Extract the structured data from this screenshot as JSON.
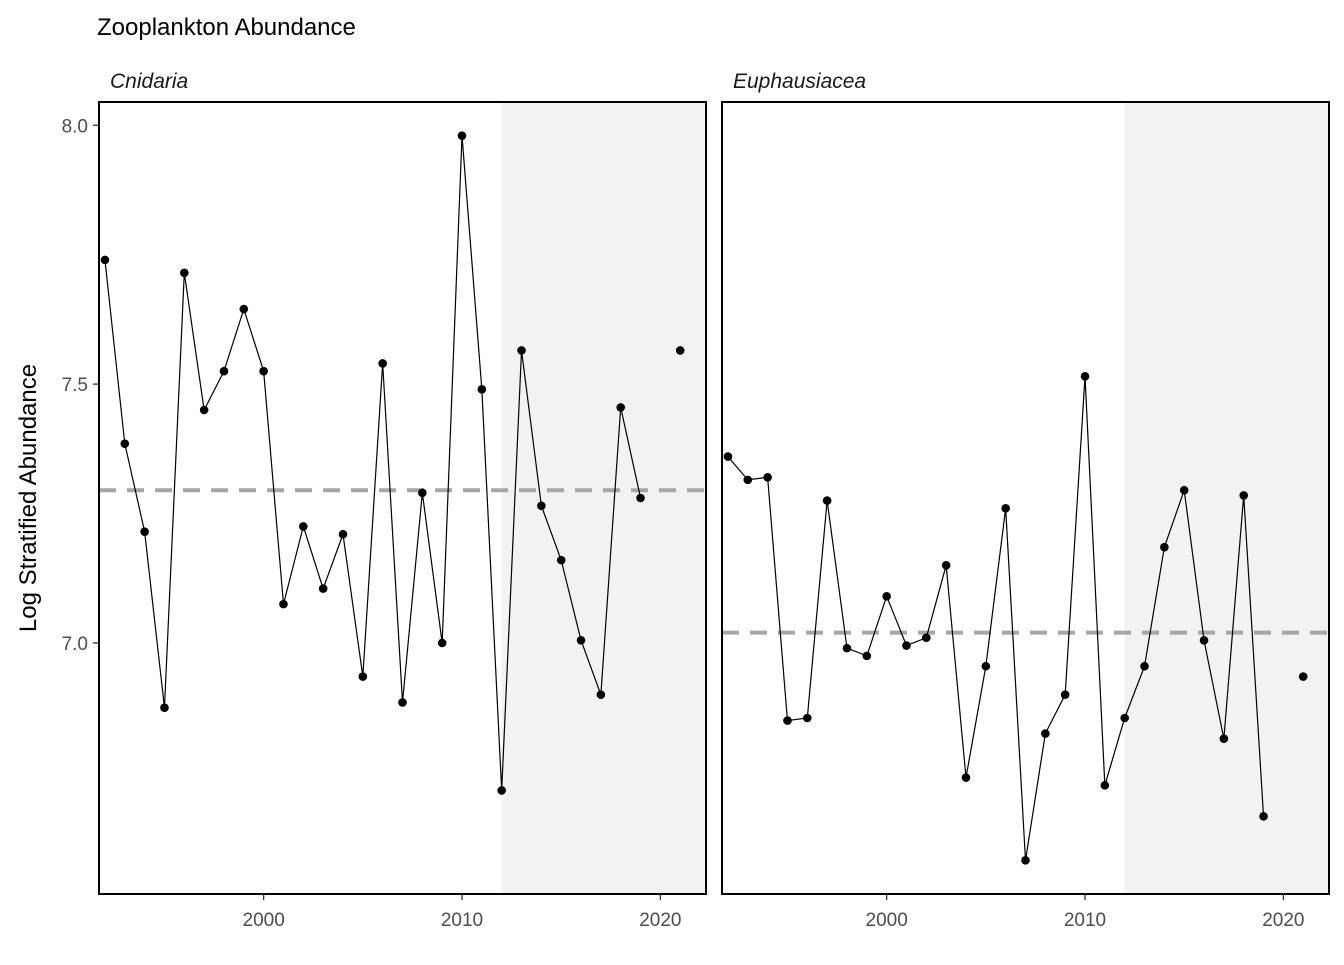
{
  "chart_data": {
    "type": "line",
    "title": "Zooplankton Abundance",
    "ylabel": "Log Stratified Abundance",
    "xlabel": "",
    "x_ticks": [
      2000,
      2010,
      2020
    ],
    "y_ticks": [
      "7.0",
      "7.5",
      "8.0"
    ],
    "xlim": [
      1991.7,
      2022.3
    ],
    "ylim": [
      6.515,
      8.045
    ],
    "shaded_region_start": 2012,
    "colors": {
      "line": "#000000",
      "points": "#000000",
      "mean_line": "#a6a6a6",
      "shade": "#f2f2f2",
      "panel_border": "#000000",
      "tick_text": "#4d4d4d"
    },
    "panels": [
      {
        "name": "Cnidaria",
        "mean": 7.295,
        "points": [
          {
            "x": 1992,
            "y": 7.74
          },
          {
            "x": 1993,
            "y": 7.385
          },
          {
            "x": 1994,
            "y": 7.215
          },
          {
            "x": 1995,
            "y": 6.875
          },
          {
            "x": 1996,
            "y": 7.715
          },
          {
            "x": 1997,
            "y": 7.45
          },
          {
            "x": 1998,
            "y": 7.525
          },
          {
            "x": 1999,
            "y": 7.645
          },
          {
            "x": 2000,
            "y": 7.525
          },
          {
            "x": 2001,
            "y": 7.075
          },
          {
            "x": 2002,
            "y": 7.225
          },
          {
            "x": 2003,
            "y": 7.105
          },
          {
            "x": 2004,
            "y": 7.21
          },
          {
            "x": 2005,
            "y": 6.935
          },
          {
            "x": 2006,
            "y": 7.54
          },
          {
            "x": 2007,
            "y": 6.885
          },
          {
            "x": 2008,
            "y": 7.29
          },
          {
            "x": 2009,
            "y": 7.0
          },
          {
            "x": 2010,
            "y": 7.98
          },
          {
            "x": 2011,
            "y": 7.49
          },
          {
            "x": 2012,
            "y": 6.715
          },
          {
            "x": 2013,
            "y": 7.565
          },
          {
            "x": 2014,
            "y": 7.265
          },
          {
            "x": 2015,
            "y": 7.16
          },
          {
            "x": 2016,
            "y": 7.005
          },
          {
            "x": 2017,
            "y": 6.9
          },
          {
            "x": 2018,
            "y": 7.455
          },
          {
            "x": 2019,
            "y": 7.28
          },
          {
            "x": 2021,
            "y": 7.565,
            "isolated": true
          }
        ]
      },
      {
        "name": "Euphausiacea",
        "mean": 7.02,
        "points": [
          {
            "x": 1992,
            "y": 7.36
          },
          {
            "x": 1993,
            "y": 7.315
          },
          {
            "x": 1994,
            "y": 7.32
          },
          {
            "x": 1995,
            "y": 6.85
          },
          {
            "x": 1996,
            "y": 6.855
          },
          {
            "x": 1997,
            "y": 7.275
          },
          {
            "x": 1998,
            "y": 6.99
          },
          {
            "x": 1999,
            "y": 6.975
          },
          {
            "x": 2000,
            "y": 7.09
          },
          {
            "x": 2001,
            "y": 6.995
          },
          {
            "x": 2002,
            "y": 7.01
          },
          {
            "x": 2003,
            "y": 7.15
          },
          {
            "x": 2004,
            "y": 6.74
          },
          {
            "x": 2005,
            "y": 6.955
          },
          {
            "x": 2006,
            "y": 7.26
          },
          {
            "x": 2007,
            "y": 6.58
          },
          {
            "x": 2008,
            "y": 6.825
          },
          {
            "x": 2009,
            "y": 6.9
          },
          {
            "x": 2010,
            "y": 7.515
          },
          {
            "x": 2011,
            "y": 6.725
          },
          {
            "x": 2012,
            "y": 6.855
          },
          {
            "x": 2013,
            "y": 6.955
          },
          {
            "x": 2014,
            "y": 7.185
          },
          {
            "x": 2015,
            "y": 7.295
          },
          {
            "x": 2016,
            "y": 7.005
          },
          {
            "x": 2017,
            "y": 6.815
          },
          {
            "x": 2018,
            "y": 7.285
          },
          {
            "x": 2019,
            "y": 6.665
          },
          {
            "x": 2021,
            "y": 6.935,
            "isolated": true
          }
        ]
      }
    ]
  }
}
